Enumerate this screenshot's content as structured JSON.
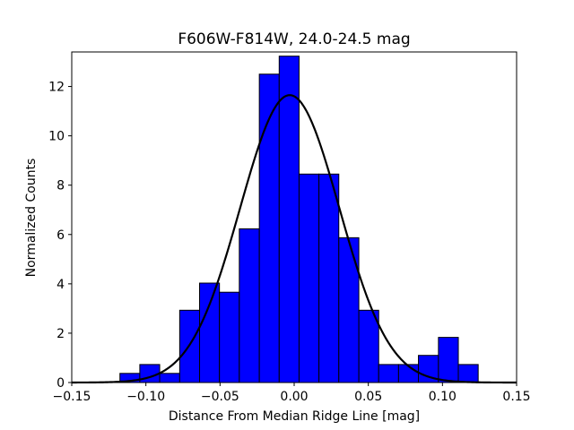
{
  "chart_data": {
    "type": "bar",
    "title": "F606W-F814W, 24.0-24.5 mag",
    "xlabel": "Distance From Median Ridge Line [mag]",
    "ylabel": "Normalized Counts",
    "xlim": [
      -0.15,
      0.15
    ],
    "ylim": [
      0,
      13.4
    ],
    "xticks": [
      "−0.15",
      "−0.10",
      "−0.05",
      "0.00",
      "0.05",
      "0.10",
      "0.15"
    ],
    "xtick_values": [
      -0.15,
      -0.1,
      -0.05,
      0.0,
      0.05,
      0.1,
      0.15
    ],
    "yticks": [
      "0",
      "2",
      "4",
      "6",
      "8",
      "10",
      "12"
    ],
    "ytick_values": [
      0,
      2,
      4,
      6,
      8,
      10,
      12
    ],
    "grid": false,
    "histogram": {
      "bin_edges": [
        -0.1175,
        -0.1041,
        -0.0907,
        -0.0772,
        -0.0638,
        -0.0504,
        -0.037,
        -0.0235,
        -0.0101,
        0.0033,
        0.0167,
        0.0301,
        0.0436,
        0.057,
        0.0704,
        0.0838,
        0.0973,
        0.1107,
        0.1241
      ],
      "values": [
        0.37,
        0.73,
        0.37,
        2.93,
        4.03,
        3.66,
        6.23,
        12.5,
        13.23,
        8.45,
        8.45,
        5.87,
        2.93,
        0.73,
        0.73,
        1.1,
        1.83,
        0.73
      ],
      "fill_color": "#0000ff",
      "edge_color": "#000000"
    },
    "fit_curve": {
      "type": "gaussian",
      "amplitude": 11.65,
      "mean": -0.003,
      "sigma": 0.0335,
      "color": "#000000"
    }
  }
}
